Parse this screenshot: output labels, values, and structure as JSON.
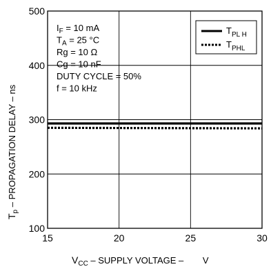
{
  "chart_data": {
    "type": "line",
    "xlabel": {
      "symbol": "V",
      "subscript": "CC",
      "text": " – SUPPLY VOLTAGE – ",
      "unit": "V"
    },
    "ylabel": {
      "symbol": "T",
      "subscript": "p",
      "text": " – PROPAGATION DELAY – ns"
    },
    "xlim": [
      15,
      30
    ],
    "ylim": [
      100,
      500
    ],
    "x_ticks": [
      "15",
      "20",
      "25",
      "30"
    ],
    "y_ticks": [
      "100",
      "200",
      "300",
      "400",
      "500"
    ],
    "grid": true,
    "legend_position": "top-right",
    "conditions": [
      {
        "main": "I",
        "sub": "F",
        "rest": " = 10 mA"
      },
      {
        "main": "T",
        "sub": "A",
        "rest": " = 25 °C"
      },
      {
        "main": "Rg = 10   Ω",
        "sub": "",
        "rest": ""
      },
      {
        "main": "Cg = 10 nF",
        "sub": "",
        "rest": ""
      },
      {
        "main": "DUTY CYCLE = 50%",
        "sub": "",
        "rest": ""
      },
      {
        "main": "f = 10 kHz",
        "sub": "",
        "rest": ""
      }
    ],
    "series": [
      {
        "name": {
          "main": "T",
          "sub": "PL H"
        },
        "style": "solid",
        "x": [
          15,
          30
        ],
        "y": [
          293,
          293
        ]
      },
      {
        "name": {
          "main": "T",
          "sub": "PHL"
        },
        "style": "dashed",
        "x": [
          15,
          30
        ],
        "y": [
          285,
          284
        ]
      }
    ]
  }
}
